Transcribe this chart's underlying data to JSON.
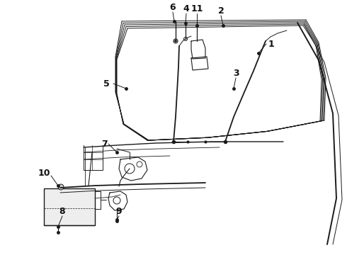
{
  "bg_color": "#ffffff",
  "line_color": "#1a1a1a",
  "label_color": "#111111",
  "label_fontsize": 9,
  "figsize": [
    4.9,
    3.6
  ],
  "dpi": 100
}
